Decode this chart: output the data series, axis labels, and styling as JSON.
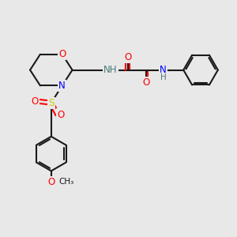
{
  "background_color": "#e8e8e8",
  "bond_color": "#1a1a1a",
  "colors": {
    "O": "#ff0000",
    "N": "#0000ff",
    "S": "#cccc00",
    "C": "#1a1a1a",
    "H": "#4a7a7a"
  },
  "figsize": [
    3.0,
    3.0
  ],
  "dpi": 100
}
